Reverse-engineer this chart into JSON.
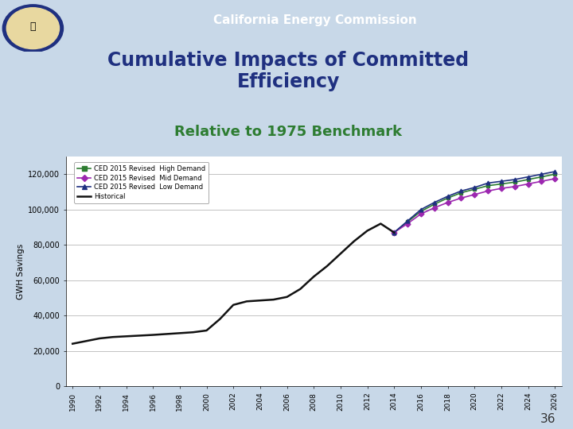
{
  "title_header": "California Energy Commission",
  "title_main": "Cumulative Impacts of Committed\nEfficiency",
  "title_sub": "Relative to 1975 Benchmark",
  "ylabel": "GWH Savings",
  "page_number": "36",
  "header_bg": "#1f3080",
  "slide_bg": "#c8d8e8",
  "chart_bg": "#ffffff",
  "title_main_color": "#1f3080",
  "title_sub_color": "#2e7d32",
  "header_text_color": "#ffffff",
  "ylim": [
    0,
    130000
  ],
  "yticks": [
    0,
    20000,
    40000,
    60000,
    80000,
    100000,
    120000
  ],
  "years_historical": [
    1990,
    1991,
    1992,
    1993,
    1994,
    1995,
    1996,
    1997,
    1998,
    1999,
    2000,
    2001,
    2002,
    2003,
    2004,
    2005,
    2006,
    2007,
    2008,
    2009,
    2010,
    2011,
    2012,
    2013,
    2014
  ],
  "values_historical": [
    24000,
    25500,
    27000,
    27800,
    28200,
    28600,
    29000,
    29500,
    30000,
    30500,
    31500,
    38000,
    46000,
    48000,
    48500,
    49000,
    50500,
    55000,
    62000,
    68000,
    75000,
    82000,
    88000,
    92000,
    87000
  ],
  "years_forecast": [
    2014,
    2015,
    2016,
    2017,
    2018,
    2019,
    2020,
    2021,
    2022,
    2023,
    2024,
    2025,
    2026
  ],
  "values_high": [
    87000,
    93000,
    99000,
    103000,
    106500,
    109500,
    111500,
    113500,
    114500,
    115500,
    117000,
    118500,
    120000
  ],
  "values_mid": [
    87000,
    92000,
    97500,
    101000,
    104000,
    106500,
    108500,
    110500,
    112000,
    113000,
    114500,
    116000,
    117500
  ],
  "values_low": [
    87000,
    93500,
    100000,
    104000,
    107500,
    110500,
    112500,
    115000,
    116000,
    117000,
    118500,
    120000,
    121500
  ],
  "color_high": "#2e7d32",
  "color_mid": "#9c27b0",
  "color_low": "#1f3080",
  "color_historical": "#111111",
  "marker_high": "s",
  "marker_mid": "D",
  "marker_low": "^",
  "legend_labels": [
    "CED 2015 Revised  High Demand",
    "CED 2015 Revised  Mid Demand",
    "CED 2015 Revised  Low Demand",
    "Historical"
  ],
  "xtick_years": [
    1990,
    1992,
    1994,
    1996,
    1998,
    2000,
    2002,
    2004,
    2006,
    2008,
    2010,
    2012,
    2014,
    2016,
    2018,
    2020,
    2022,
    2024,
    2026
  ]
}
